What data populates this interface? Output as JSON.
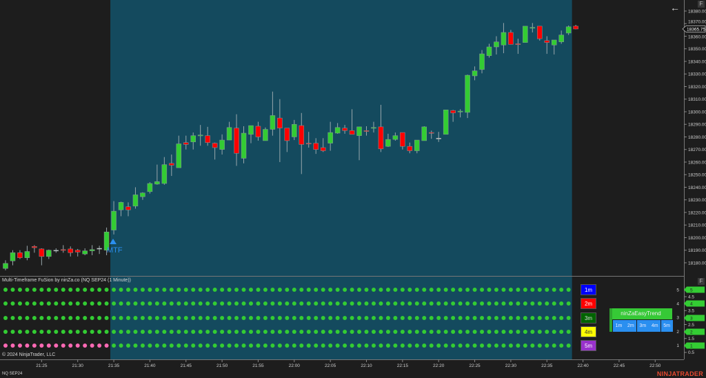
{
  "header": {
    "back_icon": "arrow-left-icon",
    "format_button": "F"
  },
  "indicator": {
    "title": "Multi-Timeframe FuSion by ninZa.co (NQ SEP24 (1 Minute))",
    "marker_label": "MTF",
    "format_button": "F",
    "legend": [
      {
        "label": "1m",
        "bg": "#0000ff",
        "fg": "#ffffff"
      },
      {
        "label": "2m",
        "bg": "#ff0000",
        "fg": "#ffffff"
      },
      {
        "label": "3m",
        "bg": "#006400",
        "fg": "#dddddd"
      },
      {
        "label": "4m",
        "bg": "#ffff00",
        "fg": "#333333"
      },
      {
        "label": "5m",
        "bg": "#9932cc",
        "fg": "#ffffff"
      }
    ],
    "easy_trend": {
      "title": "ninZaEasyTrend",
      "cells": [
        "1m",
        "2m",
        "3m",
        "4m",
        "5m"
      ]
    },
    "axis_ticks": [
      "5",
      "4.5",
      "4",
      "3.5",
      "3",
      "2.5",
      "2",
      "1.5",
      "1",
      "0.5"
    ],
    "axis_tags": [
      "5",
      "4",
      "3",
      "2",
      "1"
    ],
    "rows": [
      {
        "value": 5,
        "states": "GGGGGGGGGGGGGGGGGGGGGGGGGGGGGGGGGGGGGGGGGGGGGGGGGGGGGGGGGGGGGGGGGGGGGGGGGGGGGGG"
      },
      {
        "value": 4,
        "states": "GGGGGGGGGGGGGGGGGGGGGGGGGGGGGGGGGGGGGGGGGGGGGGGGGGGGGGGGGGGGGGGGGGGGGGGGGGGGGGG"
      },
      {
        "value": 3,
        "states": "GGGGGGGGGGGGGGGGGGGGGGGGGGGGGGGGGGGGGGGGGGGGGGGGGGGGGGGGGGGGGGGGGGGGGGGGGGGGGGG"
      },
      {
        "value": 2,
        "states": "GGGGGGGGGGGGGGGGGGGGGGGGGGGGGGGGGGGGGGGGGGGGGGGGGGGGGGGGGGGGGGGGGGGGGGGGGGGGGGG"
      },
      {
        "value": 1,
        "states": "PPPPPPPPPPPPPPPGGGGGGGGGGGGGGGGGGGGGGGGGGGGGGGGGGGGGGGGGGGGGGGGGGGGGGGGGGGGGGGG"
      }
    ],
    "colors": {
      "G": "#33cc33",
      "P": "#ff69b4"
    }
  },
  "footer": {
    "copyright": "© 2024 NinjaTrader, LLC",
    "instrument": "NQ SEP24",
    "brand": "NINJATRADER"
  },
  "colors": {
    "background": "#1d1d1d",
    "highlight": "#144a5e",
    "up": "#33cc33",
    "down": "#ff0000",
    "axis": "#8a8a8a"
  },
  "chart_data": {
    "type": "candlestick",
    "instrument": "NQ SEP24",
    "interval": "1 Minute",
    "last_price": "18365.75",
    "ylim": [
      18175,
      18385
    ],
    "y_ticks": [
      18180,
      18190,
      18200,
      18210,
      18220,
      18230,
      18240,
      18250,
      18260,
      18270,
      18280,
      18290,
      18300,
      18310,
      18320,
      18330,
      18340,
      18350,
      18360,
      18370,
      18380
    ],
    "x_ticks": [
      "21:25",
      "21:30",
      "21:35",
      "21:40",
      "21:45",
      "21:50",
      "21:55",
      "22:00",
      "22:05",
      "22:10",
      "22:15",
      "22:20",
      "22:25",
      "22:30",
      "22:35",
      "22:40",
      "22:45",
      "22:50"
    ],
    "highlight_range": [
      "21:35",
      "22:38"
    ],
    "times": [
      "21:20",
      "21:21",
      "21:22",
      "21:23",
      "21:24",
      "21:25",
      "21:26",
      "21:27",
      "21:28",
      "21:29",
      "21:30",
      "21:31",
      "21:32",
      "21:33",
      "21:34",
      "21:35",
      "21:36",
      "21:37",
      "21:38",
      "21:39",
      "21:40",
      "21:41",
      "21:42",
      "21:43",
      "21:44",
      "21:45",
      "21:46",
      "21:47",
      "21:48",
      "21:49",
      "21:50",
      "21:51",
      "21:52",
      "21:53",
      "21:54",
      "21:55",
      "21:56",
      "21:57",
      "21:58",
      "21:59",
      "22:00",
      "22:01",
      "22:02",
      "22:03",
      "22:04",
      "22:05",
      "22:06",
      "22:07",
      "22:08",
      "22:09",
      "22:10",
      "22:11",
      "22:12",
      "22:13",
      "22:14",
      "22:15",
      "22:16",
      "22:17",
      "22:18",
      "22:19",
      "22:20",
      "22:21",
      "22:22",
      "22:23",
      "22:24",
      "22:25",
      "22:26",
      "22:27",
      "22:28",
      "22:29",
      "22:30",
      "22:31",
      "22:32",
      "22:33",
      "22:34",
      "22:35",
      "22:36",
      "22:37",
      "22:38",
      "22:39"
    ],
    "ohlc": [
      [
        18175.5,
        18182,
        18174,
        18179.5
      ],
      [
        18181.5,
        18190,
        18178,
        18188
      ],
      [
        18188,
        18190,
        18183,
        18184
      ],
      [
        18184,
        18193.5,
        18182,
        18189
      ],
      [
        18193,
        18194,
        18188,
        18192
      ],
      [
        18191,
        18191.5,
        18178,
        18185
      ],
      [
        18185,
        18190.5,
        18183,
        18190
      ],
      [
        18190,
        18191.5,
        18188,
        18190
      ],
      [
        18190.5,
        18194,
        18188,
        18190
      ],
      [
        18191,
        18193,
        18185,
        18188
      ],
      [
        18190,
        18191,
        18185,
        18188.5
      ],
      [
        18187,
        18191.5,
        18186,
        18189.5
      ],
      [
        18189.5,
        18194,
        18186,
        18190.5
      ],
      [
        18191.5,
        18193.5,
        18187,
        18191.5
      ],
      [
        18190,
        18208,
        18186,
        18204.5
      ],
      [
        18206,
        18229,
        18202.5,
        18221
      ],
      [
        18222,
        18228.5,
        18217,
        18228
      ],
      [
        18224.5,
        18228,
        18217,
        18222
      ],
      [
        18225,
        18240,
        18223,
        18234
      ],
      [
        18232.5,
        18236,
        18230,
        18235.5
      ],
      [
        18236.5,
        18244,
        18235,
        18243
      ],
      [
        18242.5,
        18258,
        18242,
        18244.5
      ],
      [
        18243,
        18264,
        18242,
        18258
      ],
      [
        18259,
        18266,
        18249,
        18257.5
      ],
      [
        18255.5,
        18281,
        18255.5,
        18274.5
      ],
      [
        18275.5,
        18281,
        18270,
        18274
      ],
      [
        18276,
        18283.5,
        18270,
        18281
      ],
      [
        18281,
        18289.5,
        18273,
        18281.5
      ],
      [
        18281,
        18288,
        18273,
        18275.5
      ],
      [
        18275,
        18275.5,
        18262,
        18271.5
      ],
      [
        18270,
        18282,
        18266,
        18277.5
      ],
      [
        18277.5,
        18292,
        18277.5,
        18287.5
      ],
      [
        18287,
        18298,
        18257,
        18267
      ],
      [
        18263,
        18288.5,
        18259,
        18283
      ],
      [
        18282,
        18289,
        18275,
        18289
      ],
      [
        18288.5,
        18292,
        18277,
        18280
      ],
      [
        18277,
        18287.5,
        18277,
        18286
      ],
      [
        18286,
        18316,
        18281,
        18297
      ],
      [
        18295,
        18310,
        18260,
        18287
      ],
      [
        18287,
        18287,
        18268,
        18277
      ],
      [
        18280,
        18293.5,
        18277.5,
        18290
      ],
      [
        18289,
        18299,
        18250.5,
        18274
      ],
      [
        18275,
        18284,
        18271.5,
        18274.5
      ],
      [
        18275,
        18279,
        18266.5,
        18270
      ],
      [
        18271.5,
        18279,
        18268,
        18269
      ],
      [
        18275,
        18292,
        18269,
        18283.5
      ],
      [
        18283,
        18291,
        18282.5,
        18287.5
      ],
      [
        18287,
        18289.5,
        18282.5,
        18285
      ],
      [
        18285,
        18302,
        18282,
        18282
      ],
      [
        18281,
        18288,
        18261.5,
        18288
      ],
      [
        18285,
        18288.5,
        18281,
        18284.5
      ],
      [
        18287,
        18292,
        18283.5,
        18287.5
      ],
      [
        18288,
        18305.5,
        18268,
        18270.5
      ],
      [
        18272.5,
        18282.5,
        18272,
        18278
      ],
      [
        18278,
        18283.5,
        18277,
        18281
      ],
      [
        18283.5,
        18283.5,
        18270,
        18272.5
      ],
      [
        18272.5,
        18275.5,
        18267,
        18269
      ],
      [
        18269,
        18277.5,
        18267,
        18277.5
      ],
      [
        18277,
        18288.5,
        18277,
        18288
      ],
      [
        18283.5,
        18285,
        18278.5,
        18283
      ],
      [
        18279,
        18284,
        18276,
        18279
      ],
      [
        18282,
        18301.5,
        18282,
        18301.5
      ],
      [
        18301,
        18301.5,
        18292,
        18299
      ],
      [
        18300,
        18302,
        18295.5,
        18300.5
      ],
      [
        18299.5,
        18329.5,
        18295,
        18329
      ],
      [
        18328.5,
        18336,
        18325,
        18332.5
      ],
      [
        18333.5,
        18349,
        18330.5,
        18346
      ],
      [
        18344.5,
        18354,
        18343,
        18351.5
      ],
      [
        18351.5,
        18360,
        18345.5,
        18355.5
      ],
      [
        18353,
        18370.5,
        18346.5,
        18363
      ],
      [
        18363,
        18365,
        18353.5,
        18353.5
      ],
      [
        18354,
        18358,
        18346,
        18353.5
      ],
      [
        18355,
        18368,
        18355,
        18368
      ],
      [
        18366.5,
        18370.5,
        18363,
        18367
      ],
      [
        18368,
        18368,
        18356.5,
        18358
      ],
      [
        18356.5,
        18360,
        18346,
        18355
      ],
      [
        18353,
        18357,
        18345.5,
        18357
      ],
      [
        18355.5,
        18364.5,
        18354,
        18361
      ],
      [
        18362.5,
        18368.5,
        18361,
        18367.5
      ],
      [
        18368,
        18369,
        18365.5,
        18365.75
      ]
    ]
  }
}
